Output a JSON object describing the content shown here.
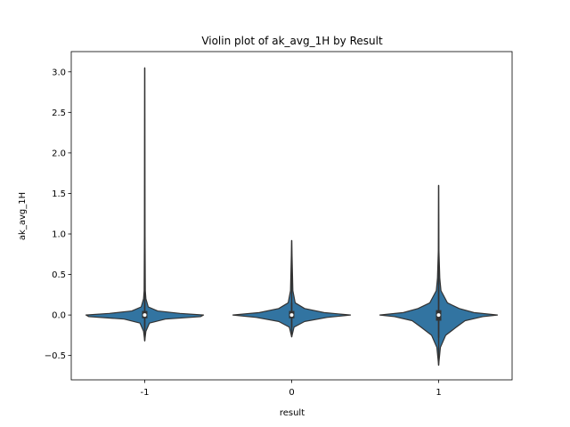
{
  "chart_data": {
    "type": "violin",
    "title": "Violin plot of ak_avg_1H by Result",
    "xlabel": "result",
    "ylabel": "ak_avg_1H",
    "categories": [
      "-1",
      "0",
      "1"
    ],
    "ylim": [
      -0.8,
      3.25
    ],
    "yticks": [
      -0.5,
      0.0,
      0.5,
      1.0,
      1.5,
      2.0,
      2.5,
      3.0
    ],
    "ytick_labels": [
      "−0.5",
      "0.0",
      "0.5",
      "1.0",
      "1.5",
      "2.0",
      "2.5",
      "3.0"
    ],
    "grid": false,
    "colors": {
      "violin_fill": "#3274a1",
      "violin_edge": "#333333",
      "box": "#333333",
      "median": "#ffffff"
    },
    "violins": [
      {
        "category": "-1",
        "min": -0.32,
        "max": 3.05,
        "q1": -0.04,
        "median": 0.0,
        "q3": 0.05,
        "whisker_low": -0.18,
        "whisker_high": 0.2,
        "density": [
          [
            -0.32,
            0.0
          ],
          [
            -0.2,
            0.02
          ],
          [
            -0.1,
            0.08
          ],
          [
            -0.05,
            0.35
          ],
          [
            -0.02,
            0.95
          ],
          [
            0.0,
            1.0
          ],
          [
            0.02,
            0.6
          ],
          [
            0.05,
            0.22
          ],
          [
            0.1,
            0.06
          ],
          [
            0.2,
            0.02
          ],
          [
            0.3,
            0.01
          ],
          [
            1.0,
            0.005
          ],
          [
            3.05,
            0.0
          ]
        ]
      },
      {
        "category": "0",
        "min": -0.27,
        "max": 0.92,
        "q1": -0.04,
        "median": 0.0,
        "q3": 0.05,
        "whisker_low": -0.15,
        "whisker_high": 0.15,
        "density": [
          [
            -0.27,
            0.0
          ],
          [
            -0.15,
            0.04
          ],
          [
            -0.08,
            0.22
          ],
          [
            -0.03,
            0.6
          ],
          [
            0.0,
            1.0
          ],
          [
            0.03,
            0.55
          ],
          [
            0.08,
            0.22
          ],
          [
            0.15,
            0.06
          ],
          [
            0.3,
            0.02
          ],
          [
            0.92,
            0.0
          ]
        ]
      },
      {
        "category": "1",
        "min": -0.62,
        "max": 1.6,
        "q1": -0.07,
        "median": 0.0,
        "q3": 0.06,
        "whisker_low": -0.28,
        "whisker_high": 0.45,
        "density": [
          [
            -0.62,
            0.0
          ],
          [
            -0.4,
            0.03
          ],
          [
            -0.25,
            0.12
          ],
          [
            -0.15,
            0.3
          ],
          [
            -0.07,
            0.45
          ],
          [
            -0.02,
            0.75
          ],
          [
            0.0,
            1.0
          ],
          [
            0.03,
            0.6
          ],
          [
            0.08,
            0.35
          ],
          [
            0.15,
            0.15
          ],
          [
            0.3,
            0.04
          ],
          [
            0.45,
            0.02
          ],
          [
            0.8,
            0.005
          ],
          [
            1.6,
            0.0
          ]
        ]
      }
    ]
  }
}
